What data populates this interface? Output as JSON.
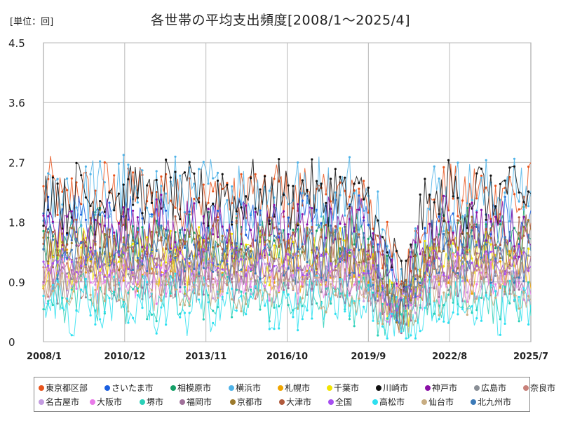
{
  "unit_label": "[単位：回]",
  "chart_data": {
    "type": "line",
    "title": "各世帯の平均支出頻度[2008/1～2025/4]",
    "xlabel": "",
    "ylabel": "",
    "ylim": [
      0,
      4.5
    ],
    "y_ticks": [
      "0",
      "0.9",
      "1.8",
      "2.7",
      "3.6",
      "4.5"
    ],
    "x_tick_labels": [
      "2008/1",
      "2010/12",
      "2013/11",
      "2016/10",
      "2019/9",
      "2022/8",
      "2025/7"
    ],
    "x_range": [
      "2008/1",
      "2025/7"
    ],
    "grid": true,
    "legend_position": "bottom",
    "series": [
      {
        "name": "東京都区部",
        "color": "#e8541c"
      },
      {
        "name": "さいたま市",
        "color": "#1a5fe0"
      },
      {
        "name": "相模原市",
        "color": "#16a068"
      },
      {
        "name": "横浜市",
        "color": "#4fb3e8"
      },
      {
        "name": "札幌市",
        "color": "#f0a500"
      },
      {
        "name": "千葉市",
        "color": "#f2e400"
      },
      {
        "name": "川崎市",
        "color": "#111111"
      },
      {
        "name": "神戸市",
        "color": "#8a0fa6"
      },
      {
        "name": "広島市",
        "color": "#8a8f96"
      },
      {
        "name": "奈良市",
        "color": "#c8817a"
      },
      {
        "name": "名古屋市",
        "color": "#c39be0"
      },
      {
        "name": "大阪市",
        "color": "#e87ae8"
      },
      {
        "name": "堺市",
        "color": "#2ad0b8"
      },
      {
        "name": "福岡市",
        "color": "#a0709a"
      },
      {
        "name": "京都市",
        "color": "#9c7a2c"
      },
      {
        "name": "大津市",
        "color": "#b05a3c"
      },
      {
        "name": "全国",
        "color": "#a64ef0"
      },
      {
        "name": "高松市",
        "color": "#2ee0f0"
      },
      {
        "name": "仙台市",
        "color": "#c8ad82"
      },
      {
        "name": "北九州市",
        "color": "#3c7ab8"
      }
    ]
  }
}
